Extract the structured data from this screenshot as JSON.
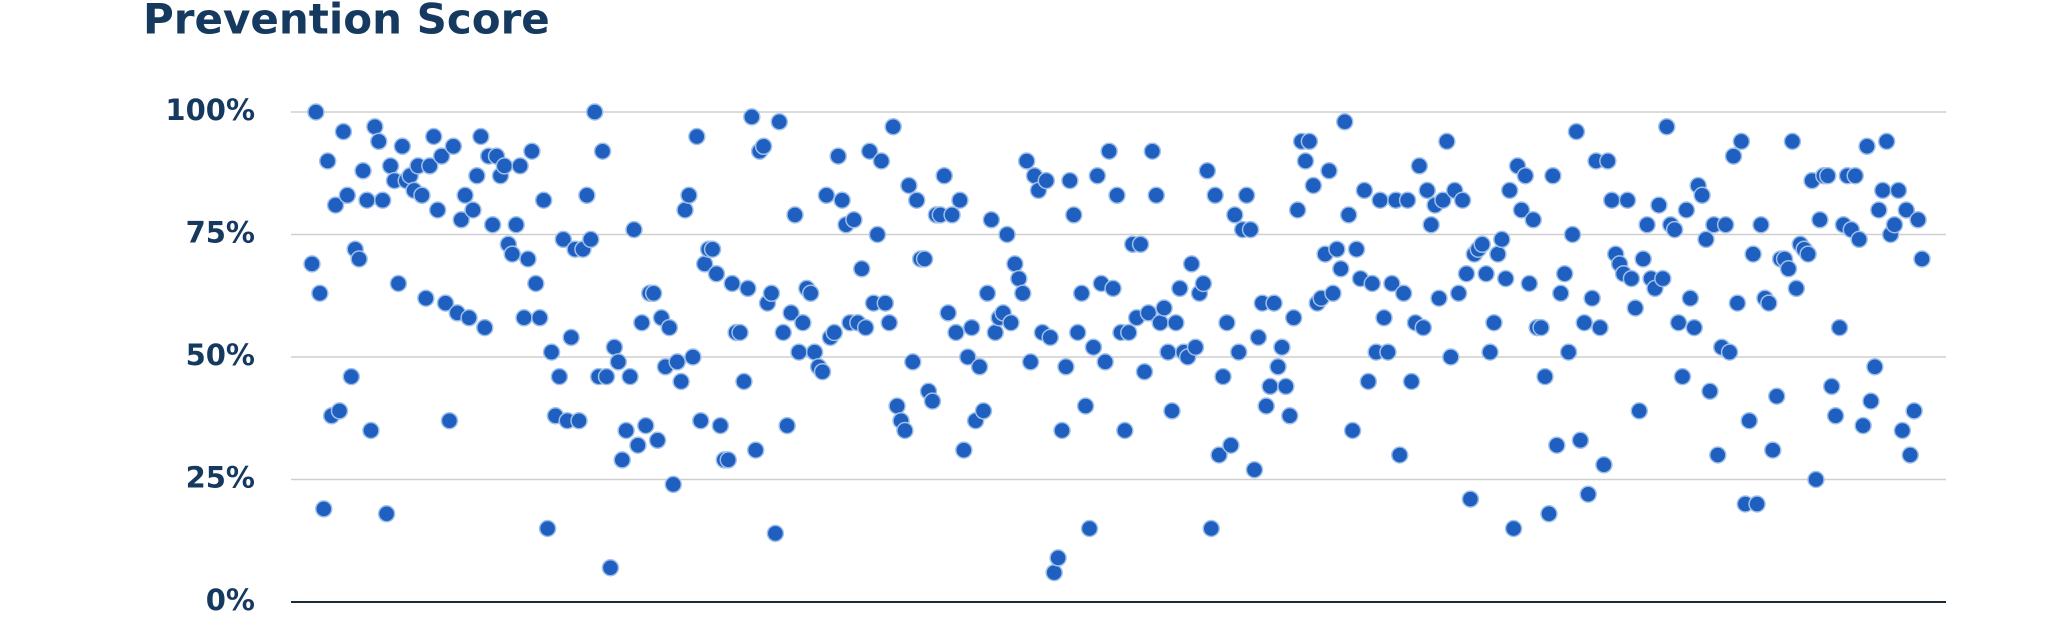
{
  "chart_data": {
    "type": "scatter",
    "title": "Prevention Score",
    "color": "#1f5fbf",
    "ylim": [
      0,
      100
    ],
    "yticks": [
      {
        "value": 0,
        "label": "0%"
      },
      {
        "value": 25,
        "label": "25%"
      },
      {
        "value": 50,
        "label": "50%"
      },
      {
        "value": 75,
        "label": "75%"
      },
      {
        "value": 100,
        "label": "100%"
      }
    ],
    "grid": true,
    "values": [
      69,
      100,
      63,
      19,
      90,
      38,
      81,
      39,
      96,
      83,
      46,
      72,
      70,
      88,
      82,
      35,
      97,
      94,
      82,
      18,
      89,
      86,
      65,
      93,
      86,
      87,
      84,
      89,
      83,
      62,
      89,
      95,
      80,
      91,
      61,
      37,
      93,
      59,
      78,
      83,
      58,
      80,
      87,
      95,
      56,
      91,
      77,
      91,
      87,
      89,
      73,
      71,
      77,
      89,
      58,
      70,
      92,
      65,
      58,
      82,
      15,
      51,
      38,
      46,
      74,
      37,
      54,
      72,
      37,
      72,
      83,
      74,
      100,
      46,
      92,
      46,
      7,
      52,
      49,
      29,
      35,
      46,
      76,
      32,
      57,
      36,
      63,
      63,
      33,
      58,
      48,
      56,
      24,
      49,
      45,
      80,
      83,
      50,
      95,
      37,
      69,
      72,
      72,
      67,
      36,
      29,
      29,
      65,
      55,
      55,
      45,
      64,
      99,
      31,
      92,
      93,
      61,
      63,
      14,
      98,
      55,
      36,
      59,
      79,
      51,
      57,
      64,
      63,
      51,
      48,
      47,
      83,
      54,
      55,
      91,
      82,
      77,
      57,
      78,
      57,
      68,
      56,
      92,
      61,
      75,
      90,
      61,
      57,
      97,
      40,
      37,
      35,
      85,
      49,
      82,
      70,
      70,
      43,
      41,
      79,
      79,
      87,
      59,
      79,
      55,
      82,
      31,
      50,
      56,
      37,
      48,
      39,
      63,
      78,
      55,
      58,
      59,
      75,
      57,
      69,
      66,
      63,
      90,
      49,
      87,
      84,
      55,
      86,
      54,
      6,
      9,
      35,
      48,
      86,
      79,
      55,
      63,
      40,
      15,
      52,
      87,
      65,
      49,
      92,
      64,
      83,
      55,
      35,
      55,
      73,
      58,
      73,
      47,
      59,
      92,
      83,
      57,
      60,
      51,
      39,
      57,
      64,
      51,
      50,
      69,
      52,
      63,
      65,
      88,
      15,
      83,
      30,
      46,
      57,
      32,
      79,
      51,
      76,
      83,
      76,
      27,
      54,
      61,
      40,
      44,
      61,
      48,
      52,
      44,
      38,
      58,
      80,
      94,
      90,
      94,
      85,
      61,
      62,
      71,
      88,
      63,
      72,
      68,
      98,
      79,
      35,
      72,
      66,
      84,
      45,
      65,
      51,
      82,
      58,
      51,
      65,
      82,
      30,
      63,
      82,
      45,
      57,
      89,
      56,
      84,
      77,
      81,
      62,
      82,
      94,
      50,
      84,
      63,
      82,
      67,
      21,
      71,
      72,
      73,
      67,
      51,
      57,
      71,
      74,
      66,
      84,
      15,
      89,
      80,
      87,
      65,
      78,
      56,
      56,
      46,
      18,
      87,
      32,
      63,
      67,
      51,
      75,
      96,
      33,
      57,
      22,
      62,
      90,
      56,
      28,
      90,
      82,
      71,
      69,
      67,
      82,
      66,
      60,
      39,
      70,
      77,
      66,
      64,
      81,
      66,
      97,
      77,
      76,
      57,
      46,
      80,
      62,
      56,
      85,
      83,
      74,
      43,
      77,
      30,
      52,
      77,
      51,
      91,
      61,
      94,
      20,
      37,
      71,
      20,
      77,
      62,
      61,
      31,
      42,
      70,
      70,
      68,
      94,
      64,
      73,
      72,
      71,
      86,
      25,
      78,
      87,
      87,
      44,
      38,
      56,
      77,
      87,
      76,
      87,
      74,
      36,
      93,
      41,
      48,
      80,
      84,
      94,
      75,
      77,
      84,
      35,
      80,
      30,
      39,
      78,
      70
    ]
  }
}
